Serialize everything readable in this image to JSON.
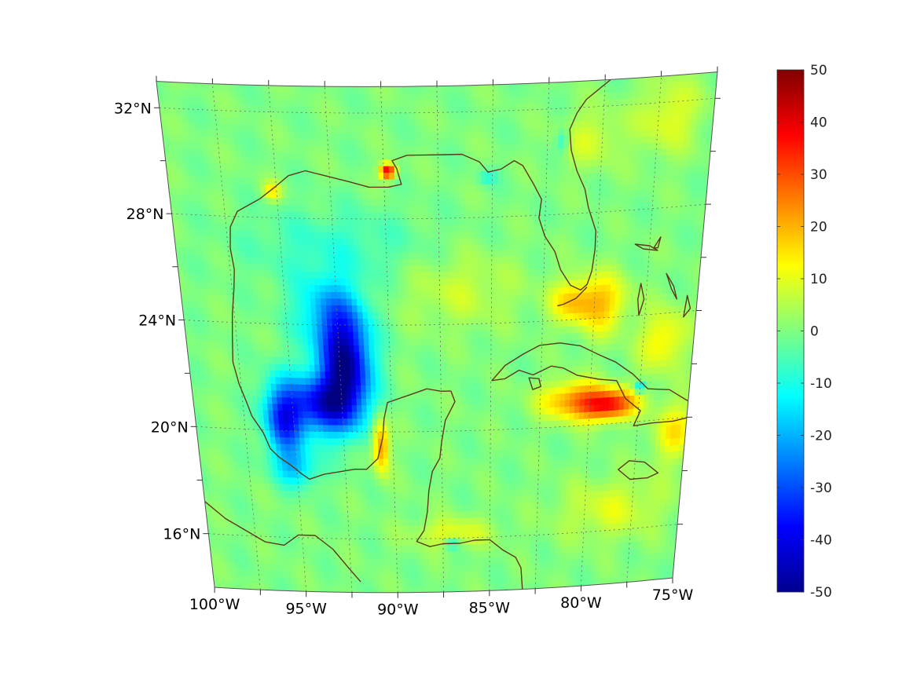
{
  "map": {
    "projection": "conic",
    "region": "Gulf of Mexico and Caribbean",
    "lon_range": [
      -100,
      -75
    ],
    "lat_range": [
      14,
      33
    ],
    "grid": true,
    "coastline_color": "#5a3a1a",
    "lon_ticks": [
      {
        "value": -100,
        "label": "100°W"
      },
      {
        "value": -95,
        "label": "95°W"
      },
      {
        "value": -90,
        "label": "90°W"
      },
      {
        "value": -85,
        "label": "85°W"
      },
      {
        "value": -80,
        "label": "80°W"
      },
      {
        "value": -75,
        "label": "75°W"
      }
    ],
    "lat_ticks": [
      {
        "value": 32,
        "label": "32°N"
      },
      {
        "value": 28,
        "label": "28°N"
      },
      {
        "value": 24,
        "label": "24°N"
      },
      {
        "value": 20,
        "label": "20°N"
      },
      {
        "value": 16,
        "label": "16°N"
      }
    ],
    "field_background": 0,
    "field_features": [
      {
        "lon": -92.2,
        "lat": 22.6,
        "value": -45,
        "spread_lon": 0.9,
        "spread_lat": 1.4
      },
      {
        "lon": -93.5,
        "lat": 21.0,
        "value": -35,
        "spread_lon": 1.2,
        "spread_lat": 0.8
      },
      {
        "lon": -95.5,
        "lat": 20.4,
        "value": -32,
        "spread_lon": 0.7,
        "spread_lat": 1.0
      },
      {
        "lon": -95.0,
        "lat": 18.6,
        "value": -15,
        "spread_lon": 0.8,
        "spread_lat": 0.5
      },
      {
        "lon": -93.0,
        "lat": 24.5,
        "value": -15,
        "spread_lon": 1.2,
        "spread_lat": 1.0
      },
      {
        "lon": -92.5,
        "lat": 27.0,
        "value": -7,
        "spread_lon": 3.0,
        "spread_lat": 1.0
      },
      {
        "lon": -89.8,
        "lat": 29.8,
        "value": 42,
        "spread_lon": 0.25,
        "spread_lat": 0.2
      },
      {
        "lon": -95.2,
        "lat": 29.0,
        "value": 14,
        "spread_lon": 0.3,
        "spread_lat": 0.25
      },
      {
        "lon": -90.6,
        "lat": 19.5,
        "value": 25,
        "spread_lon": 0.3,
        "spread_lat": 0.7
      },
      {
        "lon": -86.5,
        "lat": 25.3,
        "value": 7,
        "spread_lon": 2.0,
        "spread_lat": 1.0
      },
      {
        "lon": -81.0,
        "lat": 24.7,
        "value": 17,
        "spread_lon": 0.8,
        "spread_lat": 0.6
      },
      {
        "lon": -79.5,
        "lat": 24.5,
        "value": 16,
        "spread_lon": 0.8,
        "spread_lat": 0.8
      },
      {
        "lon": -79.0,
        "lat": 20.7,
        "value": 33,
        "spread_lon": 1.0,
        "spread_lat": 0.4
      },
      {
        "lon": -80.8,
        "lat": 21.0,
        "value": 22,
        "spread_lon": 1.2,
        "spread_lat": 0.5
      },
      {
        "lon": -75.5,
        "lat": 19.5,
        "value": 14,
        "spread_lon": 0.8,
        "spread_lat": 0.8
      },
      {
        "lon": -77.5,
        "lat": 21.3,
        "value": -18,
        "spread_lon": 0.2,
        "spread_lat": 0.15
      },
      {
        "lon": -87.0,
        "lat": 15.8,
        "value": -12,
        "spread_lon": 0.3,
        "spread_lat": 0.15
      },
      {
        "lon": -87.0,
        "lat": 16.2,
        "value": 10,
        "spread_lon": 1.5,
        "spread_lat": 0.4
      },
      {
        "lon": -78.5,
        "lat": 16.8,
        "value": 9,
        "spread_lon": 2.0,
        "spread_lat": 0.8
      },
      {
        "lon": -80.5,
        "lat": 30.8,
        "value": 8,
        "spread_lon": 1.0,
        "spread_lat": 0.8
      },
      {
        "lon": -77.0,
        "lat": 31.5,
        "value": 10,
        "spread_lon": 1.0,
        "spread_lat": 1.0
      },
      {
        "lon": -85.2,
        "lat": 29.5,
        "value": -8,
        "spread_lon": 0.3,
        "spread_lat": 0.2
      },
      {
        "lon": -81.8,
        "lat": 30.8,
        "value": -10,
        "spread_lon": 0.2,
        "spread_lat": 0.3
      },
      {
        "lon": -76.5,
        "lat": 23.0,
        "value": 14,
        "spread_lon": 0.8,
        "spread_lat": 0.8
      }
    ]
  },
  "colorbar": {
    "min": -50,
    "max": 50,
    "ticks": [
      {
        "value": 50,
        "label": "50"
      },
      {
        "value": 40,
        "label": "40"
      },
      {
        "value": 30,
        "label": "30"
      },
      {
        "value": 20,
        "label": "20"
      },
      {
        "value": 10,
        "label": "10"
      },
      {
        "value": 0,
        "label": "0"
      },
      {
        "value": -10,
        "label": "-10"
      },
      {
        "value": -20,
        "label": "-20"
      },
      {
        "value": -30,
        "label": "-30"
      },
      {
        "value": -40,
        "label": "-40"
      },
      {
        "value": -50,
        "label": "-50"
      }
    ]
  }
}
